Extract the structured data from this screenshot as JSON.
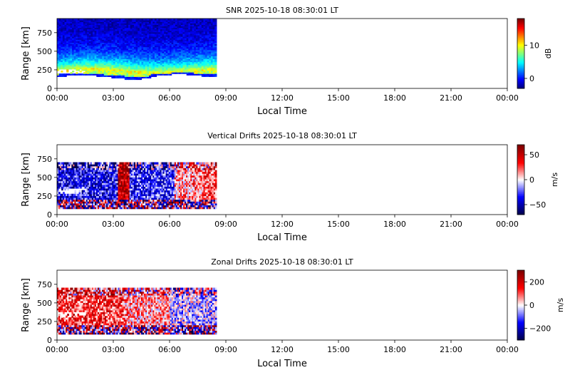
{
  "figure": {
    "background": "#ffffff",
    "grid": false
  },
  "chart_data": [
    {
      "type": "heatmap",
      "title": "SNR 2025-10-18 08:30:01 LT",
      "xlabel": "Local Time",
      "ylabel": "Range [km]",
      "x_ticks": [
        "00:00",
        "03:00",
        "06:00",
        "09:00",
        "12:00",
        "15:00",
        "18:00",
        "21:00",
        "00:00"
      ],
      "x_range_hours": [
        0,
        24
      ],
      "y_ticks": [
        0,
        250,
        500,
        750
      ],
      "ylim": [
        0,
        940
      ],
      "data_end_hour": 8.5,
      "colormap": "jet",
      "colorbar": {
        "label": "dB",
        "ticks": [
          0,
          10
        ],
        "range": [
          -3,
          18
        ]
      },
      "profile": {
        "description_levels_db": {
          "low_range_bottom": 0,
          "peak_layer": 10,
          "top": -2
        },
        "peak_range_km": 250,
        "data_top_km": 940
      }
    },
    {
      "type": "heatmap",
      "title": "Vertical Drifts 2025-10-18 08:30:01 LT",
      "xlabel": "Local Time",
      "ylabel": "Range [km]",
      "x_ticks": [
        "00:00",
        "03:00",
        "06:00",
        "09:00",
        "12:00",
        "15:00",
        "18:00",
        "21:00",
        "00:00"
      ],
      "x_range_hours": [
        0,
        24
      ],
      "y_ticks": [
        0,
        250,
        500,
        750
      ],
      "ylim": [
        0,
        940
      ],
      "data_end_hour": 8.5,
      "colormap": "seismic",
      "colorbar": {
        "label": "m/s",
        "ticks": [
          50,
          0,
          -50
        ],
        "range": [
          -70,
          70
        ]
      }
    },
    {
      "type": "heatmap",
      "title": "Zonal Drifts 2025-10-18 08:30:01 LT",
      "xlabel": "Local Time",
      "ylabel": "Range [km]",
      "x_ticks": [
        "00:00",
        "03:00",
        "06:00",
        "09:00",
        "12:00",
        "15:00",
        "18:00",
        "21:00",
        "00:00"
      ],
      "x_range_hours": [
        0,
        24
      ],
      "y_ticks": [
        0,
        250,
        500,
        750
      ],
      "ylim": [
        0,
        940
      ],
      "data_end_hour": 8.5,
      "colormap": "seismic",
      "colorbar": {
        "label": "m/s",
        "ticks": [
          200,
          0,
          -200
        ],
        "range": [
          -300,
          300
        ]
      }
    }
  ]
}
